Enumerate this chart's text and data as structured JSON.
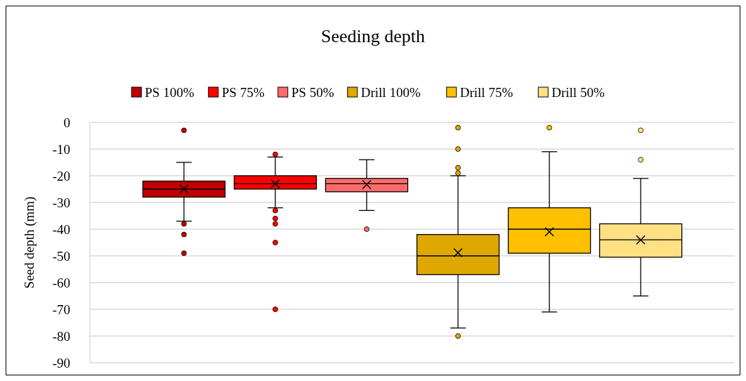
{
  "chart_data": {
    "type": "box",
    "title": "Seeding depth",
    "ylabel": "Seed depth (mm)",
    "categories": [
      null
    ],
    "ylim": [
      -90,
      0
    ],
    "yticks": [
      0,
      -10,
      -20,
      -30,
      -40,
      -50,
      -60,
      -70,
      -80,
      -90
    ],
    "grid": "y",
    "legend": "top",
    "marker": "cross",
    "series": [
      {
        "name": "PS 100%",
        "color": "#c00000",
        "boxes": [
          {
            "low": -37,
            "q1": -28,
            "median": -25,
            "q3": -22,
            "high": -15,
            "mean": -25,
            "outliers": [
              -3,
              -38,
              -42,
              -49
            ]
          }
        ]
      },
      {
        "name": "PS 75%",
        "color": "#ff0000",
        "boxes": [
          {
            "low": -32,
            "q1": -25,
            "median": -23,
            "q3": -20,
            "high": -13,
            "mean": -23,
            "outliers": [
              -12,
              -33,
              -36,
              -38,
              -45,
              -70
            ]
          }
        ]
      },
      {
        "name": "PS 50%",
        "color": "#ff6b6b",
        "boxes": [
          {
            "low": -33,
            "q1": -26,
            "median": -23,
            "q3": -21,
            "high": -14,
            "mean": -23.3,
            "outliers": [
              -40
            ]
          }
        ]
      },
      {
        "name": "Drill 100%",
        "color": "#dfa800",
        "boxes": [
          {
            "low": -77,
            "q1": -57,
            "median": -50,
            "q3": -42,
            "high": -20,
            "mean": -48.8,
            "outliers": [
              -2,
              -10,
              -17,
              -19,
              -80
            ]
          }
        ]
      },
      {
        "name": "Drill 75%",
        "color": "#ffc000",
        "boxes": [
          {
            "low": -71,
            "q1": -49,
            "median": -40,
            "q3": -32,
            "high": -11,
            "mean": -41,
            "outliers": [
              -2
            ]
          }
        ]
      },
      {
        "name": "Drill 50%",
        "color": "#ffe082",
        "boxes": [
          {
            "low": -65,
            "q1": -50.5,
            "median": -44,
            "q3": -38,
            "high": -21,
            "mean": -44,
            "outliers": [
              -3,
              -14
            ]
          }
        ]
      }
    ]
  }
}
